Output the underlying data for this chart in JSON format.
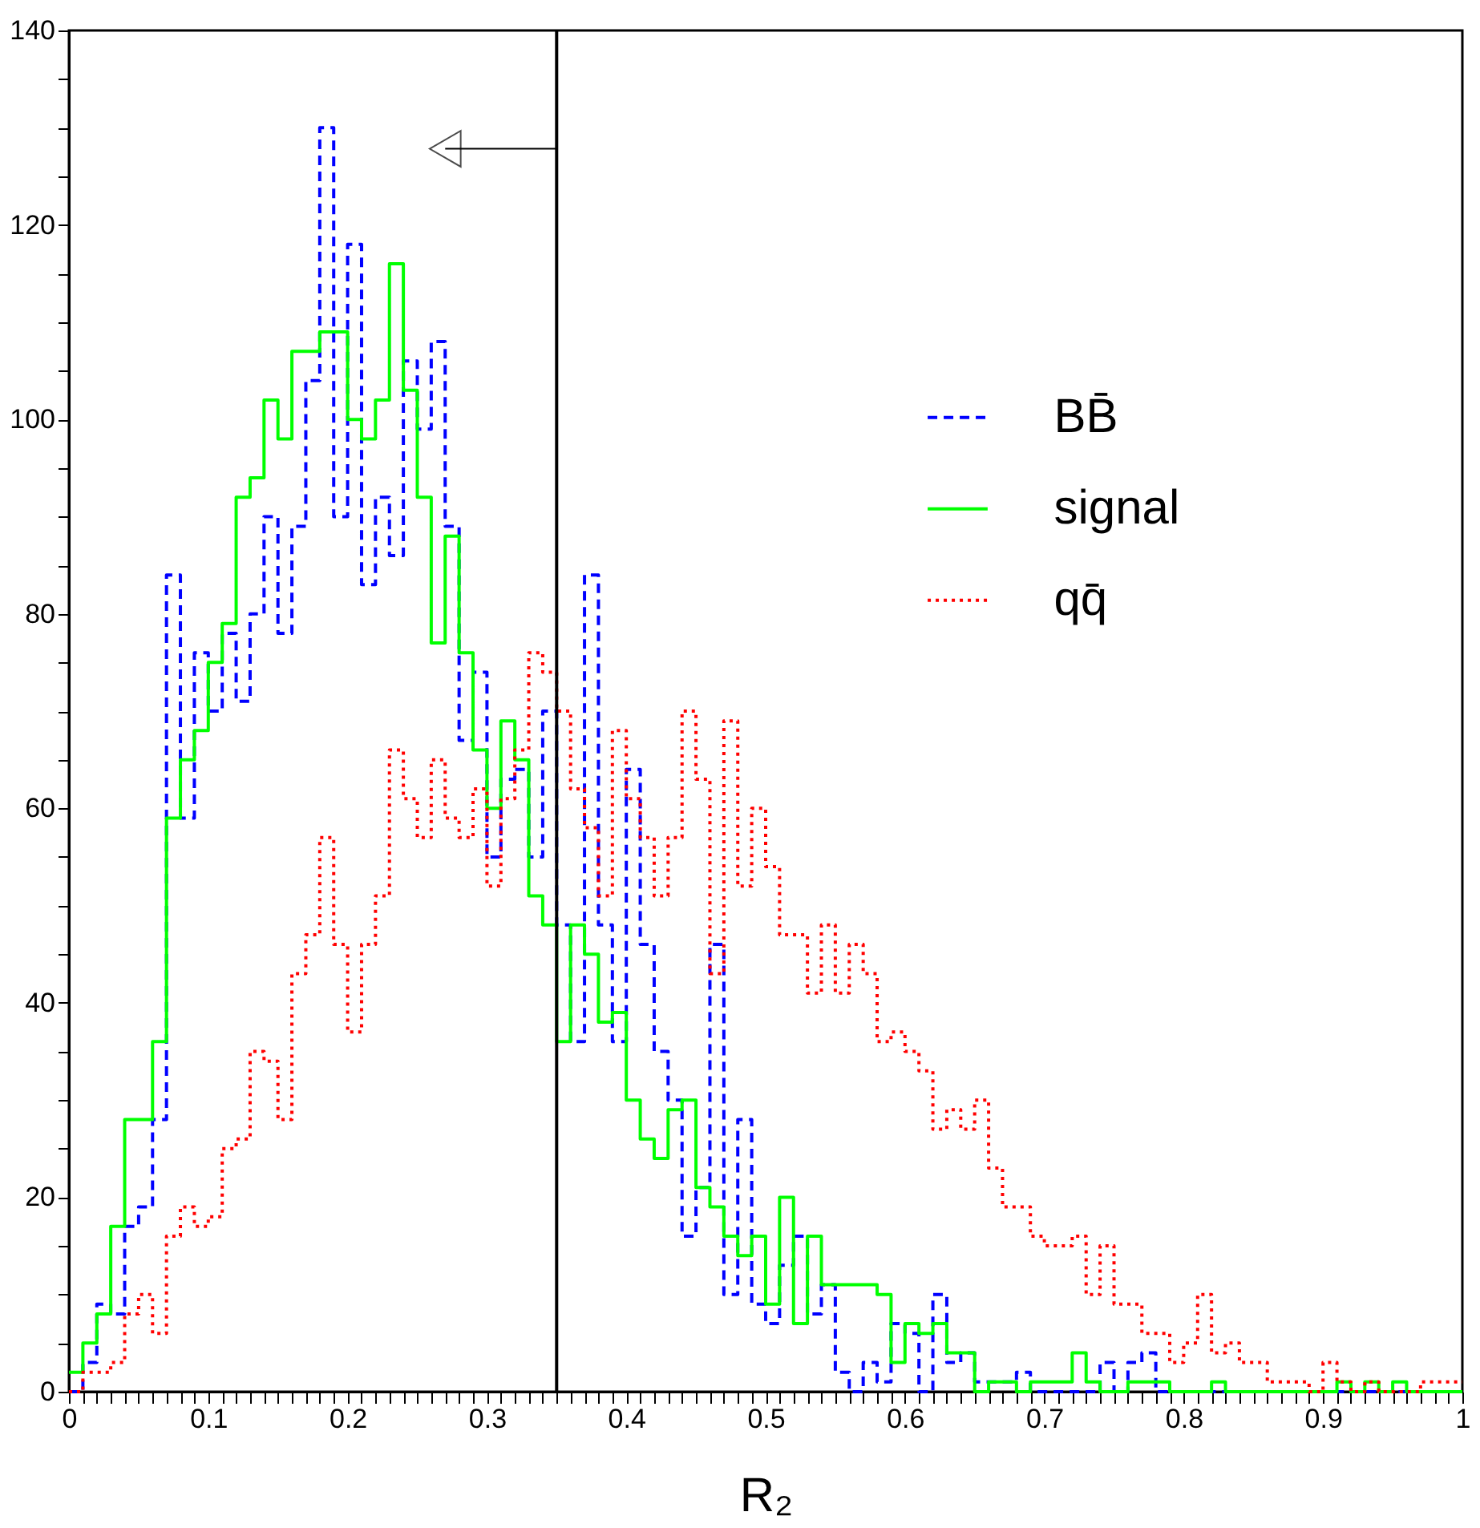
{
  "chart_data": {
    "type": "histogram",
    "xlabel": "R₂",
    "bins": [
      0,
      0.01,
      0.02,
      0.03,
      0.04,
      0.05,
      0.06,
      0.07,
      0.08,
      0.09,
      0.1,
      0.11,
      0.12,
      0.13,
      0.14,
      0.15,
      0.16,
      0.17,
      0.18,
      0.19,
      0.2,
      0.21,
      0.22,
      0.23,
      0.24,
      0.25,
      0.26,
      0.27,
      0.28,
      0.29,
      0.3,
      0.31,
      0.32,
      0.33,
      0.34,
      0.35,
      0.36,
      0.37,
      0.38,
      0.39,
      0.4,
      0.41,
      0.42,
      0.43,
      0.44,
      0.45,
      0.46,
      0.47,
      0.48,
      0.49,
      0.5,
      0.51,
      0.52,
      0.53,
      0.54,
      0.55,
      0.56,
      0.57,
      0.58,
      0.59,
      0.6,
      0.61,
      0.62,
      0.63,
      0.64,
      0.65,
      0.66,
      0.67,
      0.68,
      0.69,
      0.7,
      0.71,
      0.72,
      0.73,
      0.74,
      0.75,
      0.76,
      0.77,
      0.78,
      0.79,
      0.8,
      0.81,
      0.82,
      0.83,
      0.84,
      0.85,
      0.86,
      0.87,
      0.88,
      0.89,
      0.9,
      0.91,
      0.92,
      0.93,
      0.94,
      0.95,
      0.96,
      0.97,
      0.98,
      0.99,
      1
    ],
    "series": [
      {
        "name": "BB̄",
        "color": "#0000ff",
        "line_style": "dashed",
        "values": [
          0,
          3,
          9,
          8,
          17,
          19,
          28,
          84,
          59,
          76,
          70,
          78,
          71,
          80,
          90,
          78,
          89,
          104,
          130,
          90,
          118,
          83,
          92,
          86,
          106,
          99,
          108,
          89,
          67,
          74,
          55,
          63,
          64,
          55,
          70,
          48,
          36,
          84,
          48,
          36,
          64,
          46,
          35,
          30,
          16,
          21,
          46,
          10,
          28,
          9,
          7,
          13,
          16,
          8,
          11,
          2,
          0,
          3,
          1,
          7,
          6,
          0,
          10,
          3,
          4,
          1,
          1,
          1,
          2,
          0,
          0,
          0,
          0,
          0,
          3,
          0,
          3,
          4,
          0,
          0,
          0,
          0,
          0,
          0,
          0,
          0,
          0,
          0,
          0,
          0,
          0,
          0,
          0,
          0,
          0,
          0,
          0,
          0,
          0,
          0
        ]
      },
      {
        "name": "signal",
        "color": "#00ff00",
        "line_style": "solid",
        "values": [
          2,
          5,
          8,
          17,
          28,
          28,
          36,
          59,
          65,
          68,
          75,
          79,
          92,
          94,
          102,
          98,
          107,
          107,
          109,
          109,
          100,
          98,
          102,
          116,
          103,
          92,
          77,
          88,
          76,
          66,
          60,
          69,
          65,
          51,
          48,
          36,
          48,
          45,
          38,
          39,
          30,
          26,
          24,
          29,
          30,
          21,
          19,
          16,
          14,
          16,
          9,
          20,
          7,
          16,
          11,
          11,
          11,
          11,
          10,
          3,
          7,
          6,
          7,
          4,
          4,
          0,
          1,
          1,
          0,
          1,
          1,
          1,
          4,
          1,
          0,
          0,
          1,
          1,
          1,
          0,
          0,
          0,
          1,
          0,
          0,
          0,
          0,
          0,
          0,
          0,
          0,
          1,
          0,
          1,
          0,
          1,
          0,
          0,
          0,
          0
        ]
      },
      {
        "name": "qq̄",
        "color": "#ff0000",
        "line_style": "dotted",
        "values": [
          0,
          2,
          2,
          3,
          8,
          10,
          6,
          16,
          19,
          17,
          18,
          25,
          26,
          35,
          34,
          28,
          43,
          47,
          57,
          46,
          37,
          46,
          51,
          66,
          61,
          57,
          65,
          59,
          57,
          62,
          52,
          61,
          66,
          76,
          74,
          70,
          62,
          58,
          51,
          68,
          61,
          57,
          51,
          57,
          70,
          63,
          43,
          69,
          52,
          60,
          54,
          47,
          47,
          41,
          48,
          41,
          46,
          43,
          36,
          37,
          35,
          33,
          27,
          29,
          27,
          30,
          23,
          19,
          19,
          16,
          15,
          15,
          16,
          10,
          15,
          9,
          9,
          6,
          6,
          3,
          5,
          10,
          4,
          5,
          3,
          3,
          1,
          1,
          1,
          0,
          3,
          1,
          0,
          1,
          0,
          0,
          0,
          1,
          1,
          1
        ]
      }
    ],
    "xlim": [
      0,
      1
    ],
    "xticks": [
      0,
      {
        "value": 0.01,
        "label": null
      },
      {
        "value": 0.02,
        "label": null
      },
      {
        "value": 0.03,
        "label": null
      },
      {
        "value": 0.04,
        "label": null
      },
      {
        "value": 0.05,
        "label": null
      },
      {
        "value": 0.06,
        "label": null
      },
      {
        "value": 0.07,
        "label": null
      },
      {
        "value": 0.08,
        "label": null
      },
      {
        "value": 0.09,
        "label": null
      },
      0.1,
      {
        "value": 0.11,
        "label": null
      },
      {
        "value": 0.12,
        "label": null
      },
      {
        "value": 0.13,
        "label": null
      },
      {
        "value": 0.14,
        "label": null
      },
      {
        "value": 0.15,
        "label": null
      },
      {
        "value": 0.16,
        "label": null
      },
      {
        "value": 0.17,
        "label": null
      },
      {
        "value": 0.18,
        "label": null
      },
      {
        "value": 0.19,
        "label": null
      },
      0.2,
      {
        "value": 0.21,
        "label": null
      },
      {
        "value": 0.22,
        "label": null
      },
      {
        "value": 0.23,
        "label": null
      },
      {
        "value": 0.24,
        "label": null
      },
      {
        "value": 0.25,
        "label": null
      },
      {
        "value": 0.26,
        "label": null
      },
      {
        "value": 0.27,
        "label": null
      },
      {
        "value": 0.28,
        "label": null
      },
      {
        "value": 0.29,
        "label": null
      },
      0.3,
      {
        "value": 0.31,
        "label": null
      },
      {
        "value": 0.32,
        "label": null
      },
      {
        "value": 0.33,
        "label": null
      },
      {
        "value": 0.34,
        "label": null
      },
      {
        "value": 0.35,
        "label": null
      },
      {
        "value": 0.36,
        "label": null
      },
      {
        "value": 0.37,
        "label": null
      },
      {
        "value": 0.38,
        "label": null
      },
      {
        "value": 0.39,
        "label": null
      },
      0.4,
      {
        "value": 0.41,
        "label": null
      },
      {
        "value": 0.42,
        "label": null
      },
      {
        "value": 0.43,
        "label": null
      },
      {
        "value": 0.44,
        "label": null
      },
      {
        "value": 0.45,
        "label": null
      },
      {
        "value": 0.46,
        "label": null
      },
      {
        "value": 0.47,
        "label": null
      },
      {
        "value": 0.48,
        "label": null
      },
      {
        "value": 0.49,
        "label": null
      },
      0.5,
      {
        "value": 0.51,
        "label": null
      },
      {
        "value": 0.52,
        "label": null
      },
      {
        "value": 0.53,
        "label": null
      },
      {
        "value": 0.54,
        "label": null
      },
      {
        "value": 0.55,
        "label": null
      },
      {
        "value": 0.56,
        "label": null
      },
      {
        "value": 0.57,
        "label": null
      },
      {
        "value": 0.58,
        "label": null
      },
      {
        "value": 0.59,
        "label": null
      },
      0.6,
      {
        "value": 0.61,
        "label": null
      },
      {
        "value": 0.62,
        "label": null
      },
      {
        "value": 0.63,
        "label": null
      },
      {
        "value": 0.64,
        "label": null
      },
      {
        "value": 0.65,
        "label": null
      },
      {
        "value": 0.66,
        "label": null
      },
      {
        "value": 0.67,
        "label": null
      },
      {
        "value": 0.68,
        "label": null
      },
      {
        "value": 0.69,
        "label": null
      },
      0.7,
      {
        "value": 0.71,
        "label": null
      },
      {
        "value": 0.72,
        "label": null
      },
      {
        "value": 0.73,
        "label": null
      },
      {
        "value": 0.74,
        "label": null
      },
      {
        "value": 0.75,
        "label": null
      },
      {
        "value": 0.76,
        "label": null
      },
      {
        "value": 0.77,
        "label": null
      },
      {
        "value": 0.78,
        "label": null
      },
      {
        "value": 0.79,
        "label": null
      },
      0.8,
      {
        "value": 0.81,
        "label": null
      },
      {
        "value": 0.82,
        "label": null
      },
      {
        "value": 0.83,
        "label": null
      },
      {
        "value": 0.84,
        "label": null
      },
      {
        "value": 0.85,
        "label": null
      },
      {
        "value": 0.86,
        "label": null
      },
      {
        "value": 0.87,
        "label": null
      },
      {
        "value": 0.88,
        "label": null
      },
      {
        "value": 0.89,
        "label": null
      },
      0.9,
      {
        "value": 0.91,
        "label": null
      },
      {
        "value": 0.92,
        "label": null
      },
      {
        "value": 0.93,
        "label": null
      },
      {
        "value": 0.94,
        "label": null
      },
      {
        "value": 0.95,
        "label": null
      },
      {
        "value": 0.96,
        "label": null
      },
      {
        "value": 0.97,
        "label": null
      },
      {
        "value": 0.98,
        "label": null
      },
      {
        "value": 0.99,
        "label": null
      },
      1
    ],
    "ylim": [
      0,
      140
    ],
    "yticks": [
      0,
      {
        "value": 5,
        "label": null
      },
      {
        "value": 10,
        "label": null
      },
      {
        "value": 15,
        "label": null
      },
      20,
      {
        "value": 25,
        "label": null
      },
      {
        "value": 30,
        "label": null
      },
      {
        "value": 35,
        "label": null
      },
      40,
      {
        "value": 45,
        "label": null
      },
      {
        "value": 50,
        "label": null
      },
      {
        "value": 55,
        "label": null
      },
      60,
      {
        "value": 65,
        "label": null
      },
      {
        "value": 70,
        "label": null
      },
      {
        "value": 75,
        "label": null
      },
      80,
      {
        "value": 85,
        "label": null
      },
      {
        "value": 90,
        "label": null
      },
      {
        "value": 95,
        "label": null
      },
      100,
      {
        "value": 105,
        "label": null
      },
      {
        "value": 110,
        "label": null
      },
      {
        "value": 115,
        "label": null
      },
      120,
      {
        "value": 125,
        "label": null
      },
      {
        "value": 130,
        "label": null
      },
      {
        "value": 135,
        "label": null
      },
      140
    ],
    "ref_lines": [
      {
        "axis": "x",
        "value": 0.35,
        "color": "#000000"
      }
    ],
    "grid": false,
    "legend": "right"
  }
}
